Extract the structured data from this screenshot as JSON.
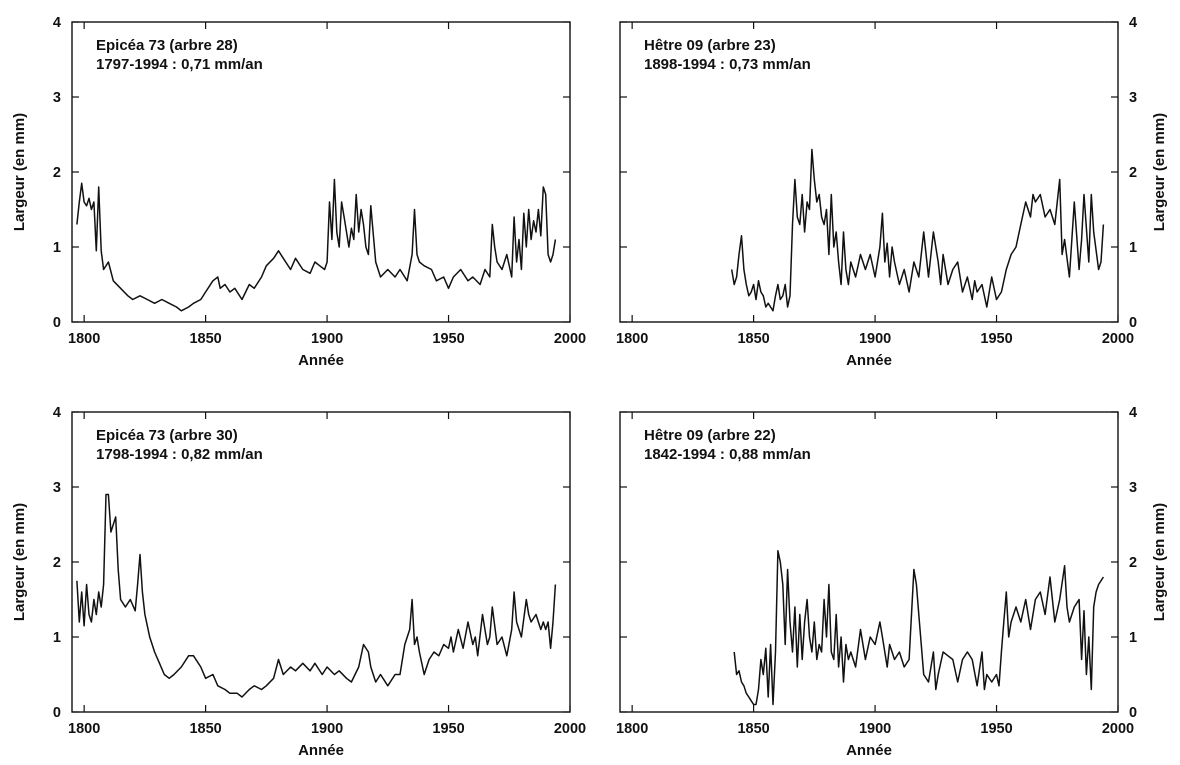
{
  "chart_data": [
    {
      "type": "line",
      "title": "Epicéa  73 (arbre 28)",
      "subtitle": "1797-1994 : 0,71 mm/an",
      "xlabel": "Année",
      "ylabel": "Largeur (en mm)",
      "ylabel_side": "left",
      "xlim": [
        1795,
        2000
      ],
      "ylim": [
        0,
        4
      ],
      "xticks": [
        "1800",
        "1850",
        "1900",
        "1950",
        "2000"
      ],
      "yticks": [
        "0",
        "1",
        "2",
        "3",
        "4"
      ],
      "grid": false,
      "series": [
        {
          "x": [
            1797,
            1798,
            1799,
            1800,
            1801,
            1802,
            1803,
            1804,
            1805,
            1806,
            1807,
            1808,
            1810,
            1812,
            1815,
            1818,
            1820,
            1823,
            1826,
            1829,
            1832,
            1835,
            1838,
            1840,
            1843,
            1845,
            1848,
            1850,
            1853,
            1855,
            1856,
            1858,
            1860,
            1862,
            1865,
            1868,
            1870,
            1873,
            1875,
            1878,
            1880,
            1882,
            1885,
            1887,
            1890,
            1893,
            1895,
            1897,
            1899,
            1900,
            1901,
            1902,
            1903,
            1904,
            1905,
            1906,
            1907,
            1908,
            1909,
            1910,
            1911,
            1912,
            1913,
            1914,
            1915,
            1916,
            1917,
            1918,
            1920,
            1922,
            1925,
            1928,
            1930,
            1933,
            1935,
            1936,
            1937,
            1938,
            1940,
            1943,
            1945,
            1948,
            1950,
            1952,
            1955,
            1958,
            1960,
            1963,
            1965,
            1967,
            1968,
            1969,
            1970,
            1972,
            1974,
            1976,
            1977,
            1978,
            1979,
            1980,
            1981,
            1982,
            1983,
            1984,
            1985,
            1986,
            1987,
            1988,
            1989,
            1990,
            1991,
            1992,
            1993,
            1994
          ],
          "y": [
            1.3,
            1.6,
            1.85,
            1.6,
            1.55,
            1.65,
            1.5,
            1.6,
            0.95,
            1.8,
            0.95,
            0.7,
            0.8,
            0.55,
            0.45,
            0.35,
            0.3,
            0.35,
            0.3,
            0.25,
            0.3,
            0.25,
            0.2,
            0.15,
            0.2,
            0.25,
            0.3,
            0.4,
            0.55,
            0.6,
            0.45,
            0.5,
            0.4,
            0.45,
            0.3,
            0.5,
            0.45,
            0.6,
            0.75,
            0.85,
            0.95,
            0.85,
            0.7,
            0.85,
            0.7,
            0.65,
            0.8,
            0.75,
            0.7,
            0.8,
            1.6,
            1.1,
            1.9,
            1.2,
            1.0,
            1.6,
            1.4,
            1.2,
            1.0,
            1.25,
            1.1,
            1.7,
            1.2,
            1.5,
            1.3,
            1.0,
            0.9,
            1.55,
            0.8,
            0.6,
            0.7,
            0.6,
            0.7,
            0.55,
            0.9,
            1.5,
            0.9,
            0.8,
            0.75,
            0.7,
            0.55,
            0.6,
            0.45,
            0.6,
            0.7,
            0.55,
            0.6,
            0.5,
            0.7,
            0.6,
            1.3,
            1.0,
            0.8,
            0.7,
            0.9,
            0.6,
            1.4,
            0.8,
            1.1,
            0.7,
            1.45,
            1.0,
            1.5,
            1.1,
            1.35,
            1.2,
            1.5,
            1.15,
            1.8,
            1.7,
            0.9,
            0.8,
            0.9,
            1.1
          ]
        }
      ]
    },
    {
      "type": "line",
      "title": "Hêtre 09 (arbre 23)",
      "subtitle": "1898-1994 : 0,73 mm/an",
      "xlabel": "Année",
      "ylabel": "Largeur (en mm)",
      "ylabel_side": "right",
      "xlim": [
        1795,
        2000
      ],
      "ylim": [
        0,
        4
      ],
      "xticks": [
        "1800",
        "1850",
        "1900",
        "1950",
        "2000"
      ],
      "yticks": [
        "0",
        "1",
        "2",
        "3",
        "4"
      ],
      "grid": false,
      "series": [
        {
          "x": [
            1841,
            1842,
            1843,
            1844,
            1845,
            1846,
            1847,
            1848,
            1849,
            1850,
            1851,
            1852,
            1853,
            1854,
            1855,
            1856,
            1857,
            1858,
            1859,
            1860,
            1861,
            1862,
            1863,
            1864,
            1865,
            1866,
            1867,
            1868,
            1869,
            1870,
            1871,
            1872,
            1873,
            1874,
            1875,
            1876,
            1877,
            1878,
            1879,
            1880,
            1881,
            1882,
            1883,
            1884,
            1885,
            1886,
            1887,
            1888,
            1889,
            1890,
            1892,
            1894,
            1896,
            1898,
            1900,
            1902,
            1903,
            1904,
            1905,
            1906,
            1907,
            1908,
            1910,
            1912,
            1914,
            1916,
            1918,
            1920,
            1921,
            1922,
            1924,
            1926,
            1927,
            1928,
            1930,
            1932,
            1934,
            1936,
            1938,
            1940,
            1941,
            1942,
            1944,
            1946,
            1948,
            1950,
            1952,
            1954,
            1956,
            1958,
            1960,
            1962,
            1964,
            1965,
            1966,
            1968,
            1970,
            1972,
            1974,
            1976,
            1977,
            1978,
            1980,
            1982,
            1984,
            1985,
            1986,
            1988,
            1989,
            1990,
            1992,
            1993,
            1994
          ],
          "y": [
            0.7,
            0.5,
            0.6,
            0.9,
            1.15,
            0.7,
            0.5,
            0.35,
            0.4,
            0.5,
            0.3,
            0.55,
            0.4,
            0.35,
            0.2,
            0.25,
            0.2,
            0.15,
            0.35,
            0.5,
            0.3,
            0.35,
            0.5,
            0.2,
            0.35,
            1.3,
            1.9,
            1.4,
            1.3,
            1.7,
            1.2,
            1.6,
            1.5,
            2.3,
            1.9,
            1.6,
            1.7,
            1.4,
            1.3,
            1.5,
            0.9,
            1.7,
            1.0,
            1.2,
            0.8,
            0.5,
            1.2,
            0.7,
            0.5,
            0.8,
            0.6,
            0.9,
            0.7,
            0.9,
            0.6,
            1.0,
            1.45,
            0.8,
            1.05,
            0.6,
            1.0,
            0.8,
            0.5,
            0.7,
            0.4,
            0.8,
            0.6,
            1.2,
            0.9,
            0.6,
            1.2,
            0.8,
            0.5,
            0.9,
            0.5,
            0.7,
            0.8,
            0.4,
            0.6,
            0.3,
            0.55,
            0.4,
            0.5,
            0.2,
            0.6,
            0.3,
            0.4,
            0.7,
            0.9,
            1.0,
            1.3,
            1.6,
            1.4,
            1.7,
            1.6,
            1.7,
            1.4,
            1.5,
            1.3,
            1.9,
            0.9,
            1.1,
            0.6,
            1.6,
            0.7,
            1.1,
            1.7,
            0.8,
            1.7,
            1.2,
            0.7,
            0.8,
            1.3
          ]
        }
      ]
    },
    {
      "type": "line",
      "title": "Epicéa  73 (arbre 30)",
      "subtitle": "1798-1994 : 0,82 mm/an",
      "xlabel": "Année",
      "ylabel": "Largeur (en mm)",
      "ylabel_side": "left",
      "xlim": [
        1795,
        2000
      ],
      "ylim": [
        0,
        4
      ],
      "xticks": [
        "1800",
        "1850",
        "1900",
        "1950",
        "2000"
      ],
      "yticks": [
        "0",
        "1",
        "2",
        "3",
        "4"
      ],
      "grid": false,
      "series": [
        {
          "x": [
            1797,
            1798,
            1799,
            1800,
            1801,
            1802,
            1803,
            1804,
            1805,
            1806,
            1807,
            1808,
            1809,
            1810,
            1811,
            1812,
            1813,
            1814,
            1815,
            1817,
            1819,
            1821,
            1822,
            1823,
            1824,
            1825,
            1827,
            1829,
            1831,
            1833,
            1835,
            1837,
            1840,
            1843,
            1845,
            1848,
            1850,
            1853,
            1855,
            1858,
            1860,
            1863,
            1865,
            1868,
            1870,
            1873,
            1875,
            1878,
            1880,
            1882,
            1885,
            1887,
            1890,
            1893,
            1895,
            1898,
            1900,
            1903,
            1905,
            1908,
            1910,
            1913,
            1915,
            1917,
            1918,
            1920,
            1922,
            1925,
            1928,
            1930,
            1932,
            1934,
            1935,
            1936,
            1937,
            1938,
            1940,
            1942,
            1944,
            1946,
            1948,
            1950,
            1951,
            1952,
            1954,
            1956,
            1958,
            1960,
            1961,
            1962,
            1964,
            1966,
            1967,
            1968,
            1970,
            1972,
            1974,
            1976,
            1977,
            1978,
            1980,
            1982,
            1983,
            1984,
            1986,
            1988,
            1989,
            1990,
            1991,
            1992,
            1993,
            1994
          ],
          "y": [
            1.75,
            1.2,
            1.6,
            1.15,
            1.7,
            1.3,
            1.2,
            1.5,
            1.3,
            1.6,
            1.4,
            1.7,
            2.9,
            2.9,
            2.4,
            2.5,
            2.6,
            1.9,
            1.5,
            1.4,
            1.5,
            1.35,
            1.7,
            2.1,
            1.6,
            1.3,
            1.0,
            0.8,
            0.65,
            0.5,
            0.45,
            0.5,
            0.6,
            0.75,
            0.75,
            0.6,
            0.45,
            0.5,
            0.35,
            0.3,
            0.25,
            0.25,
            0.2,
            0.3,
            0.35,
            0.3,
            0.35,
            0.45,
            0.7,
            0.5,
            0.6,
            0.55,
            0.65,
            0.55,
            0.65,
            0.5,
            0.6,
            0.5,
            0.55,
            0.45,
            0.4,
            0.6,
            0.9,
            0.8,
            0.6,
            0.4,
            0.5,
            0.35,
            0.5,
            0.5,
            0.9,
            1.1,
            1.5,
            0.9,
            1.0,
            0.8,
            0.5,
            0.7,
            0.8,
            0.75,
            0.9,
            0.85,
            1.0,
            0.8,
            1.1,
            0.85,
            1.2,
            0.9,
            1.0,
            0.75,
            1.3,
            0.9,
            1.0,
            1.4,
            0.9,
            1.0,
            0.75,
            1.1,
            1.6,
            1.2,
            1.0,
            1.5,
            1.3,
            1.2,
            1.3,
            1.1,
            1.2,
            1.1,
            1.2,
            0.85,
            1.2,
            1.7
          ]
        }
      ]
    },
    {
      "type": "line",
      "title": "Hêtre 09 (arbre 22)",
      "subtitle": "1842-1994 : 0,88 mm/an",
      "xlabel": "Année",
      "ylabel": "Largeur (en mm)",
      "ylabel_side": "right",
      "xlim": [
        1795,
        2000
      ],
      "ylim": [
        0,
        4
      ],
      "xticks": [
        "1800",
        "1850",
        "1900",
        "1950",
        "2000"
      ],
      "yticks": [
        "0",
        "1",
        "2",
        "3",
        "4"
      ],
      "grid": false,
      "series": [
        {
          "x": [
            1842,
            1843,
            1844,
            1845,
            1846,
            1847,
            1848,
            1849,
            1850,
            1851,
            1852,
            1853,
            1854,
            1855,
            1856,
            1857,
            1858,
            1859,
            1860,
            1861,
            1862,
            1863,
            1864,
            1865,
            1866,
            1867,
            1868,
            1869,
            1870,
            1871,
            1872,
            1873,
            1874,
            1875,
            1876,
            1877,
            1878,
            1879,
            1880,
            1881,
            1882,
            1883,
            1884,
            1885,
            1886,
            1887,
            1888,
            1889,
            1890,
            1892,
            1894,
            1896,
            1898,
            1900,
            1902,
            1903,
            1904,
            1905,
            1906,
            1907,
            1908,
            1910,
            1912,
            1914,
            1916,
            1917,
            1918,
            1920,
            1922,
            1924,
            1925,
            1926,
            1928,
            1930,
            1932,
            1934,
            1936,
            1938,
            1940,
            1942,
            1944,
            1945,
            1946,
            1948,
            1950,
            1951,
            1952,
            1953,
            1954,
            1955,
            1956,
            1958,
            1960,
            1962,
            1964,
            1966,
            1968,
            1970,
            1972,
            1974,
            1976,
            1978,
            1979,
            1980,
            1982,
            1984,
            1985,
            1986,
            1987,
            1988,
            1989,
            1990,
            1991,
            1992,
            1994
          ],
          "y": [
            0.8,
            0.5,
            0.55,
            0.4,
            0.35,
            0.25,
            0.2,
            0.15,
            0.1,
            0.1,
            0.3,
            0.7,
            0.5,
            0.85,
            0.2,
            0.9,
            0.1,
            0.8,
            2.15,
            2.0,
            1.7,
            0.9,
            1.9,
            1.2,
            0.8,
            1.4,
            0.6,
            1.3,
            0.7,
            1.2,
            1.5,
            1.0,
            0.8,
            1.2,
            0.7,
            0.9,
            0.8,
            1.5,
            1.0,
            1.7,
            0.8,
            0.7,
            1.3,
            0.6,
            1.0,
            0.4,
            0.9,
            0.7,
            0.8,
            0.6,
            1.1,
            0.7,
            1.0,
            0.9,
            1.2,
            1.0,
            0.8,
            0.6,
            0.9,
            0.8,
            0.7,
            0.8,
            0.6,
            0.7,
            1.9,
            1.7,
            1.3,
            0.5,
            0.4,
            0.8,
            0.3,
            0.5,
            0.8,
            0.75,
            0.7,
            0.4,
            0.7,
            0.8,
            0.7,
            0.35,
            0.8,
            0.3,
            0.5,
            0.4,
            0.5,
            0.35,
            0.8,
            1.2,
            1.6,
            1.0,
            1.2,
            1.4,
            1.2,
            1.5,
            1.1,
            1.5,
            1.6,
            1.3,
            1.8,
            1.2,
            1.5,
            1.95,
            1.4,
            1.2,
            1.4,
            1.5,
            0.7,
            1.35,
            0.5,
            1.0,
            0.3,
            1.4,
            1.6,
            1.7,
            1.8
          ]
        }
      ]
    }
  ]
}
